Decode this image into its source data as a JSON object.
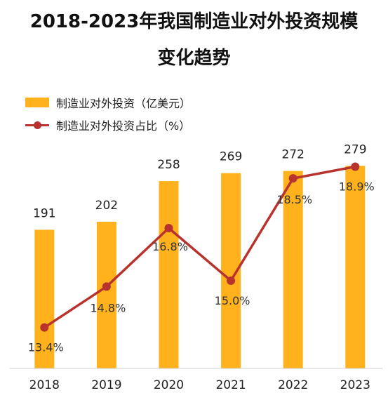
{
  "title_line1": "2018-2023年我国制造业对外投资规模",
  "title_line2": "变化趋势",
  "legend": {
    "bar": "制造业对外投资（亿美元）",
    "line": "制造业对外投资占比（%）"
  },
  "colors": {
    "bar": "#FFB21C",
    "line": "#B8322E"
  },
  "chart_data": {
    "type": "bar",
    "categories": [
      "2018",
      "2019",
      "2020",
      "2021",
      "2022",
      "2023"
    ],
    "series": [
      {
        "name": "制造业对外投资（亿美元）",
        "type": "bar",
        "values": [
          191,
          202,
          258,
          269,
          272,
          279
        ],
        "labels": [
          "191",
          "202",
          "258",
          "269",
          "272",
          "279"
        ]
      },
      {
        "name": "制造业对外投资占比（%）",
        "type": "line",
        "values": [
          13.4,
          14.8,
          16.8,
          15.0,
          18.5,
          18.9
        ],
        "labels": [
          "13.4%",
          "14.8%",
          "16.8%",
          "15.0%",
          "18.5%",
          "18.9%"
        ]
      }
    ],
    "y_bar_range": [
      0,
      290
    ],
    "y_line_range": [
      12.0,
      19.2
    ],
    "grid": false,
    "legend_position": "top-left"
  }
}
